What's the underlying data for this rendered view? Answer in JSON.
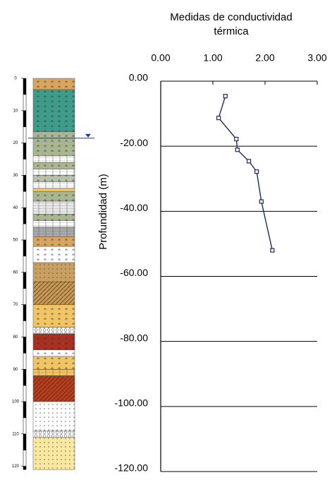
{
  "chart_data": {
    "type": "line",
    "title_lines": [
      "Medidas de conductividad",
      "térmica"
    ],
    "y_label": "Profundidad (m)",
    "x": [
      1.24,
      1.11,
      1.45,
      1.47,
      1.69,
      1.84,
      1.93,
      2.14
    ],
    "values": [
      -4.6,
      -11.3,
      -17.8,
      -21.1,
      -24.6,
      -27.8,
      -37.0,
      -52.0
    ],
    "color": "#1a2a5a",
    "xlim": [
      0,
      3
    ],
    "xticks": [
      {
        "value": 0,
        "label": "0.00"
      },
      {
        "value": 1,
        "label": "1.00"
      },
      {
        "value": 2,
        "label": "2.00"
      },
      {
        "value": 3,
        "label": "3.00"
      }
    ],
    "ylim": [
      -120,
      0
    ],
    "yticks": [
      {
        "value": 0,
        "label": "0.00"
      },
      {
        "value": -20,
        "label": "-20.00"
      },
      {
        "value": -40,
        "label": "-40.00"
      },
      {
        "value": -60,
        "label": "-60.00"
      },
      {
        "value": -80,
        "label": "-80.00"
      },
      {
        "value": -100,
        "label": "-100.00"
      },
      {
        "value": -120,
        "label": "-120.00"
      }
    ],
    "grid": true,
    "column_depth_ticks": [
      0,
      10,
      20,
      30,
      40,
      50,
      60,
      70,
      80,
      90,
      100,
      110,
      120
    ]
  }
}
